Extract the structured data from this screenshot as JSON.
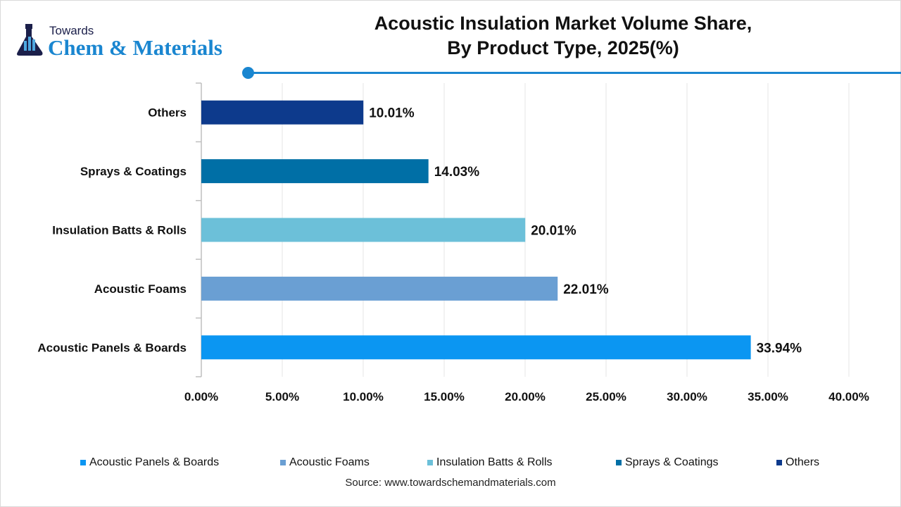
{
  "logo": {
    "line1": "Towards",
    "line2": "Chem & Materials"
  },
  "title": {
    "line1": "Acoustic Insulation Market Volume Share,",
    "line2": "By Product Type, 2025(%)"
  },
  "source": "Source: www.towardschemandmaterials.com",
  "chart_data": {
    "type": "bar",
    "orientation": "horizontal",
    "title": "Acoustic Insulation Market Volume Share, By Product Type, 2025(%)",
    "categories": [
      "Acoustic Panels & Boards",
      "Acoustic Foams",
      "Insulation Batts & Rolls",
      "Sprays & Coatings",
      "Others"
    ],
    "values": [
      33.94,
      22.01,
      20.01,
      14.03,
      10.01
    ],
    "data_labels": [
      "33.94%",
      "22.01%",
      "20.01%",
      "14.03%",
      "10.01%"
    ],
    "colors": [
      "#0b96f2",
      "#6a9fd3",
      "#6cc0d9",
      "#006fa6",
      "#0d3a8c"
    ],
    "xlim": [
      0,
      40
    ],
    "x_ticks": [
      "0.00%",
      "5.00%",
      "10.00%",
      "15.00%",
      "20.00%",
      "25.00%",
      "30.00%",
      "35.00%",
      "40.00%"
    ],
    "grid": true,
    "legend": "bottom",
    "xlabel": "",
    "ylabel": ""
  }
}
